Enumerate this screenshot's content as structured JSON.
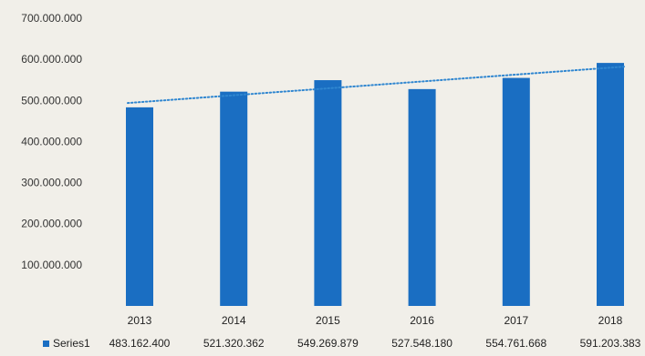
{
  "chart_data": {
    "type": "bar",
    "categories": [
      "2013",
      "2014",
      "2015",
      "2016",
      "2017",
      "2018"
    ],
    "series": [
      {
        "name": "Series1",
        "values": [
          483162400,
          521320362,
          549269879,
          527548180,
          554761668,
          591203383
        ],
        "value_labels": [
          "483.162.400",
          "521.320.362",
          "549.269.879",
          "527.548.180",
          "554.761.668",
          "591.203.383"
        ]
      }
    ],
    "y_ticks": [
      "700.000.000",
      "600.000.000",
      "500.000.000",
      "400.000.000",
      "300.000.000",
      "200.000.000",
      "100.000.000"
    ],
    "ylim": [
      0,
      700000000
    ],
    "trendline": {
      "style": "dotted",
      "kind": "linear"
    },
    "legend": "bottom-left as data table",
    "grid": false,
    "colors": {
      "bar": "#1a6ec2",
      "trend": "#2f86d0"
    }
  }
}
